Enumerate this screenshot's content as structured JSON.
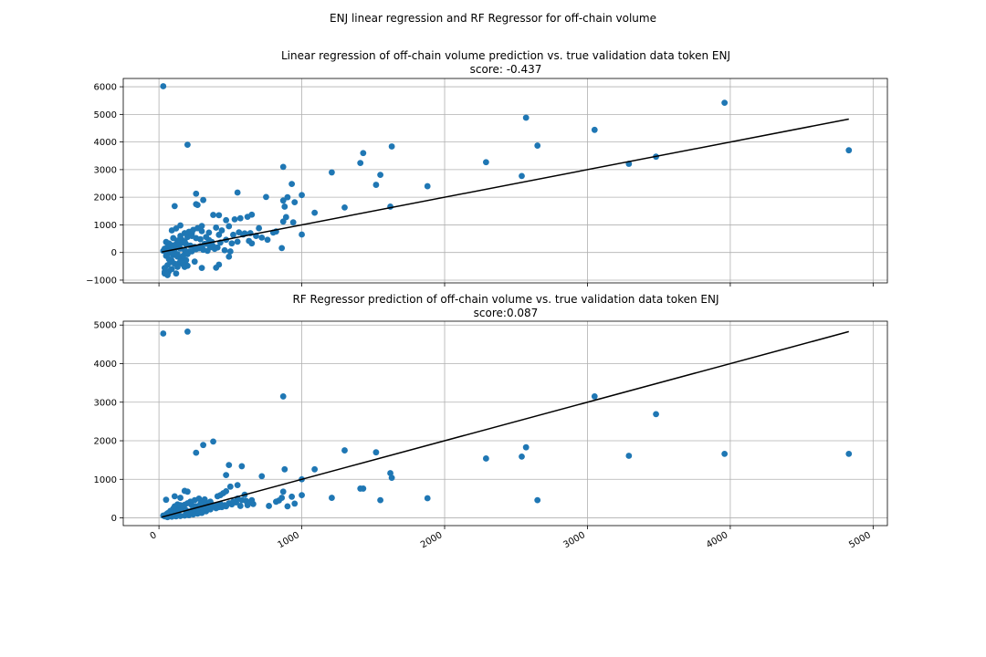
{
  "figure": {
    "suptitle": "ENJ linear regression and RF Regressor for off-chain volume"
  },
  "style": {
    "point_color": "#1f77b4",
    "line_color": "#000000",
    "grid_color": "#b0b0b0"
  },
  "chart_data": [
    {
      "type": "scatter",
      "title": "Linear regression of off-chain volume prediction vs. true validation data token ENJ",
      "subtitle": "score: -0.437",
      "xlim": [
        -250,
        5100
      ],
      "ylim": [
        -1100,
        6300
      ],
      "xticks": [
        0,
        1000,
        2000,
        3000,
        4000,
        5000
      ],
      "yticks": [
        -1000,
        0,
        1000,
        2000,
        3000,
        4000,
        5000,
        6000
      ],
      "show_xticklabels": false,
      "grid": true,
      "fit_line": {
        "x": [
          20,
          4830
        ],
        "y": [
          20,
          4830
        ]
      },
      "points": [
        [
          30,
          6020
        ],
        [
          200,
          3900
        ],
        [
          2570,
          4880
        ],
        [
          3050,
          4440
        ],
        [
          3960,
          5420
        ],
        [
          4830,
          3700
        ],
        [
          2650,
          3870
        ],
        [
          1630,
          3840
        ],
        [
          1410,
          3240
        ],
        [
          1430,
          3600
        ],
        [
          870,
          3100
        ],
        [
          1210,
          2900
        ],
        [
          2290,
          3270
        ],
        [
          2540,
          2770
        ],
        [
          3290,
          3210
        ],
        [
          3480,
          3470
        ],
        [
          1550,
          2810
        ],
        [
          1520,
          2450
        ],
        [
          1880,
          2400
        ],
        [
          550,
          2170
        ],
        [
          260,
          2130
        ],
        [
          310,
          1900
        ],
        [
          750,
          2010
        ],
        [
          870,
          1880
        ],
        [
          900,
          2000
        ],
        [
          930,
          2480
        ],
        [
          1000,
          2080
        ],
        [
          950,
          1820
        ],
        [
          880,
          1660
        ],
        [
          1090,
          1440
        ],
        [
          1300,
          1630
        ],
        [
          1620,
          1660
        ],
        [
          260,
          1750
        ],
        [
          270,
          1720
        ],
        [
          110,
          1680
        ],
        [
          890,
          1280
        ],
        [
          870,
          1120
        ],
        [
          940,
          1090
        ],
        [
          1000,
          650
        ],
        [
          860,
          160
        ],
        [
          380,
          1360
        ],
        [
          420,
          1350
        ],
        [
          470,
          1170
        ],
        [
          530,
          1200
        ],
        [
          570,
          1240
        ],
        [
          620,
          1290
        ],
        [
          650,
          1370
        ],
        [
          700,
          880
        ],
        [
          820,
          760
        ],
        [
          350,
          720
        ],
        [
          400,
          900
        ],
        [
          440,
          800
        ],
        [
          490,
          950
        ],
        [
          520,
          640
        ],
        [
          560,
          730
        ],
        [
          600,
          690
        ],
        [
          640,
          700
        ],
        [
          650,
          330
        ],
        [
          420,
          640
        ],
        [
          300,
          960
        ],
        [
          230,
          690
        ],
        [
          340,
          310
        ],
        [
          380,
          220
        ],
        [
          410,
          180
        ],
        [
          460,
          80
        ],
        [
          500,
          40
        ],
        [
          490,
          -150
        ],
        [
          420,
          -440
        ],
        [
          400,
          -550
        ],
        [
          300,
          -560
        ],
        [
          250,
          -330
        ],
        [
          200,
          -480
        ],
        [
          180,
          -520
        ],
        [
          120,
          -760
        ],
        [
          60,
          -820
        ],
        [
          40,
          -700
        ],
        [
          150,
          980
        ],
        [
          90,
          800
        ],
        [
          120,
          870
        ],
        [
          150,
          600
        ],
        [
          180,
          700
        ],
        [
          210,
          750
        ],
        [
          240,
          820
        ],
        [
          270,
          880
        ],
        [
          300,
          770
        ],
        [
          330,
          560
        ],
        [
          350,
          450
        ],
        [
          370,
          380
        ],
        [
          100,
          520
        ],
        [
          130,
          430
        ],
        [
          160,
          350
        ],
        [
          190,
          300
        ],
        [
          220,
          250
        ],
        [
          250,
          200
        ],
        [
          280,
          150
        ],
        [
          310,
          100
        ],
        [
          340,
          60
        ],
        [
          90,
          260
        ],
        [
          120,
          190
        ],
        [
          150,
          140
        ],
        [
          180,
          80
        ],
        [
          210,
          30
        ],
        [
          70,
          -30
        ],
        [
          100,
          -90
        ],
        [
          130,
          -150
        ],
        [
          160,
          -220
        ],
        [
          190,
          -280
        ],
        [
          80,
          -350
        ],
        [
          110,
          -410
        ],
        [
          60,
          -460
        ],
        [
          40,
          -560
        ],
        [
          50,
          380
        ],
        [
          70,
          330
        ],
        [
          60,
          200
        ],
        [
          40,
          140
        ],
        [
          30,
          60
        ],
        [
          50,
          -120
        ],
        [
          70,
          -240
        ],
        [
          90,
          -300
        ],
        [
          140,
          -390
        ],
        [
          170,
          -120
        ],
        [
          200,
          -60
        ],
        [
          230,
          40
        ],
        [
          260,
          120
        ],
        [
          290,
          230
        ],
        [
          320,
          310
        ],
        [
          360,
          190
        ],
        [
          390,
          130
        ],
        [
          430,
          360
        ],
        [
          470,
          460
        ],
        [
          510,
          330
        ],
        [
          550,
          390
        ],
        [
          590,
          650
        ],
        [
          630,
          420
        ],
        [
          680,
          600
        ],
        [
          720,
          540
        ],
        [
          760,
          460
        ],
        [
          800,
          720
        ],
        [
          160,
          460
        ],
        [
          140,
          260
        ],
        [
          110,
          120
        ],
        [
          80,
          100
        ],
        [
          60,
          40
        ],
        [
          100,
          -20
        ],
        [
          130,
          -60
        ],
        [
          150,
          -320
        ],
        [
          170,
          -440
        ],
        [
          130,
          -520
        ],
        [
          90,
          -600
        ],
        [
          70,
          -680
        ],
        [
          40,
          -760
        ],
        [
          60,
          -780
        ],
        [
          200,
          560
        ],
        [
          230,
          600
        ],
        [
          260,
          520
        ],
        [
          290,
          480
        ],
        [
          180,
          400
        ],
        [
          140,
          330
        ],
        [
          120,
          300
        ],
        [
          100,
          220
        ]
      ]
    },
    {
      "type": "scatter",
      "title": "RF Regressor prediction of off-chain volume vs. true validation data token ENJ",
      "subtitle": "score:0.087",
      "xlim": [
        -250,
        5100
      ],
      "ylim": [
        -200,
        5100
      ],
      "xticks": [
        0,
        1000,
        2000,
        3000,
        4000,
        5000
      ],
      "yticks": [
        0,
        1000,
        2000,
        3000,
        4000,
        5000
      ],
      "show_xticklabels": true,
      "grid": true,
      "fit_line": {
        "x": [
          20,
          4830
        ],
        "y": [
          20,
          4830
        ]
      },
      "points": [
        [
          30,
          4780
        ],
        [
          200,
          4830
        ],
        [
          870,
          3150
        ],
        [
          3050,
          3150
        ],
        [
          3480,
          2690
        ],
        [
          4830,
          1660
        ],
        [
          3960,
          1660
        ],
        [
          3290,
          1610
        ],
        [
          2570,
          1830
        ],
        [
          2540,
          1590
        ],
        [
          2290,
          1540
        ],
        [
          2650,
          460
        ],
        [
          1880,
          510
        ],
        [
          1550,
          460
        ],
        [
          1630,
          1040
        ],
        [
          1620,
          1160
        ],
        [
          1520,
          1700
        ],
        [
          1300,
          1750
        ],
        [
          1430,
          760
        ],
        [
          1410,
          760
        ],
        [
          1210,
          520
        ],
        [
          1090,
          1260
        ],
        [
          1000,
          1000
        ],
        [
          1000,
          590
        ],
        [
          950,
          370
        ],
        [
          930,
          550
        ],
        [
          900,
          300
        ],
        [
          880,
          1260
        ],
        [
          870,
          680
        ],
        [
          840,
          450
        ],
        [
          380,
          1980
        ],
        [
          310,
          1890
        ],
        [
          260,
          1690
        ],
        [
          490,
          1370
        ],
        [
          470,
          1110
        ],
        [
          580,
          1340
        ],
        [
          720,
          1080
        ],
        [
          550,
          850
        ],
        [
          500,
          810
        ],
        [
          470,
          690
        ],
        [
          410,
          560
        ],
        [
          430,
          590
        ],
        [
          450,
          640
        ],
        [
          600,
          600
        ],
        [
          650,
          460
        ],
        [
          770,
          310
        ],
        [
          820,
          420
        ],
        [
          860,
          520
        ],
        [
          660,
          360
        ],
        [
          620,
          330
        ],
        [
          570,
          310
        ],
        [
          540,
          400
        ],
        [
          510,
          350
        ],
        [
          470,
          300
        ],
        [
          440,
          280
        ],
        [
          400,
          250
        ],
        [
          360,
          220
        ],
        [
          330,
          170
        ],
        [
          300,
          130
        ],
        [
          270,
          110
        ],
        [
          240,
          90
        ],
        [
          210,
          70
        ],
        [
          180,
          60
        ],
        [
          150,
          50
        ],
        [
          120,
          40
        ],
        [
          90,
          30
        ],
        [
          60,
          20
        ],
        [
          40,
          40
        ],
        [
          50,
          470
        ],
        [
          80,
          180
        ],
        [
          110,
          560
        ],
        [
          130,
          280
        ],
        [
          150,
          520
        ],
        [
          180,
          700
        ],
        [
          200,
          680
        ],
        [
          220,
          420
        ],
        [
          250,
          460
        ],
        [
          280,
          500
        ],
        [
          310,
          400
        ],
        [
          340,
          380
        ],
        [
          370,
          350
        ],
        [
          390,
          300
        ],
        [
          420,
          280
        ],
        [
          460,
          330
        ],
        [
          490,
          380
        ],
        [
          520,
          420
        ],
        [
          550,
          500
        ],
        [
          580,
          460
        ],
        [
          610,
          440
        ],
        [
          640,
          400
        ],
        [
          100,
          240
        ],
        [
          120,
          200
        ],
        [
          140,
          260
        ],
        [
          160,
          300
        ],
        [
          180,
          340
        ],
        [
          200,
          380
        ],
        [
          230,
          330
        ],
        [
          260,
          300
        ],
        [
          290,
          260
        ],
        [
          320,
          230
        ],
        [
          60,
          120
        ],
        [
          80,
          100
        ],
        [
          100,
          140
        ],
        [
          120,
          160
        ],
        [
          140,
          190
        ],
        [
          160,
          220
        ],
        [
          190,
          200
        ],
        [
          220,
          170
        ],
        [
          250,
          150
        ],
        [
          280,
          130
        ],
        [
          30,
          60
        ],
        [
          50,
          90
        ],
        [
          70,
          140
        ],
        [
          90,
          80
        ],
        [
          110,
          300
        ],
        [
          130,
          350
        ],
        [
          150,
          330
        ],
        [
          170,
          250
        ],
        [
          190,
          180
        ],
        [
          210,
          140
        ],
        [
          240,
          230
        ],
        [
          270,
          250
        ],
        [
          300,
          280
        ],
        [
          330,
          300
        ],
        [
          360,
          270
        ],
        [
          400,
          320
        ],
        [
          430,
          360
        ],
        [
          360,
          420
        ],
        [
          320,
          480
        ],
        [
          290,
          360
        ]
      ]
    }
  ]
}
